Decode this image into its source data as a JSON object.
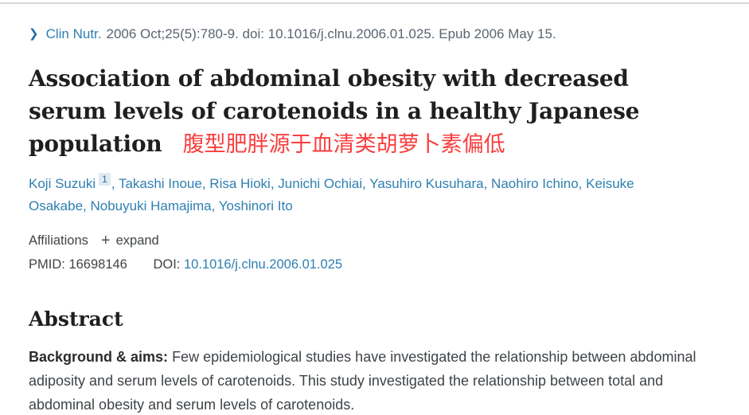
{
  "colors": {
    "link_blue": "#2e7fb1",
    "annotation_red": "#fa3e3e",
    "title_color": "#1f1f1f",
    "top_rule": "#d8d8d8"
  },
  "citation": {
    "chevron": "❯",
    "journal": "Clin Nutr.",
    "details": "2006 Oct;25(5):780-9. doi: 10.1016/j.clnu.2006.01.025. Epub 2006 May 15."
  },
  "title": {
    "text": "Association of abdominal obesity with decreased serum levels of carotenoids in a healthy Japanese population",
    "annotation": "腹型肥胖源于血清类胡萝卜素偏低"
  },
  "authors": {
    "separator": ", ",
    "items": [
      {
        "name": "Koji Suzuki",
        "sup": "1"
      },
      {
        "name": "Takashi Inoue"
      },
      {
        "name": "Risa Hioki"
      },
      {
        "name": "Junichi Ochiai"
      },
      {
        "name": "Yasuhiro Kusuhara"
      },
      {
        "name": "Naohiro Ichino"
      },
      {
        "name": "Keisuke Osakabe"
      },
      {
        "name": "Nobuyuki Hamajima"
      },
      {
        "name": "Yoshinori Ito"
      }
    ]
  },
  "meta": {
    "affiliations_label": "Affiliations",
    "expand_icon": "+",
    "expand_label": "expand",
    "pmid_label": "PMID:",
    "pmid_value": "16698146",
    "doi_label": "DOI:",
    "doi_link": "10.1016/j.clnu.2006.01.025"
  },
  "abstract": {
    "heading": "Abstract",
    "background_label": "Background & aims:",
    "background_text": "Few epidemiological studies have investigated the relationship between abdominal adiposity and serum levels of carotenoids. This study investigated the relationship between total and abdominal obesity and serum levels of carotenoids."
  }
}
